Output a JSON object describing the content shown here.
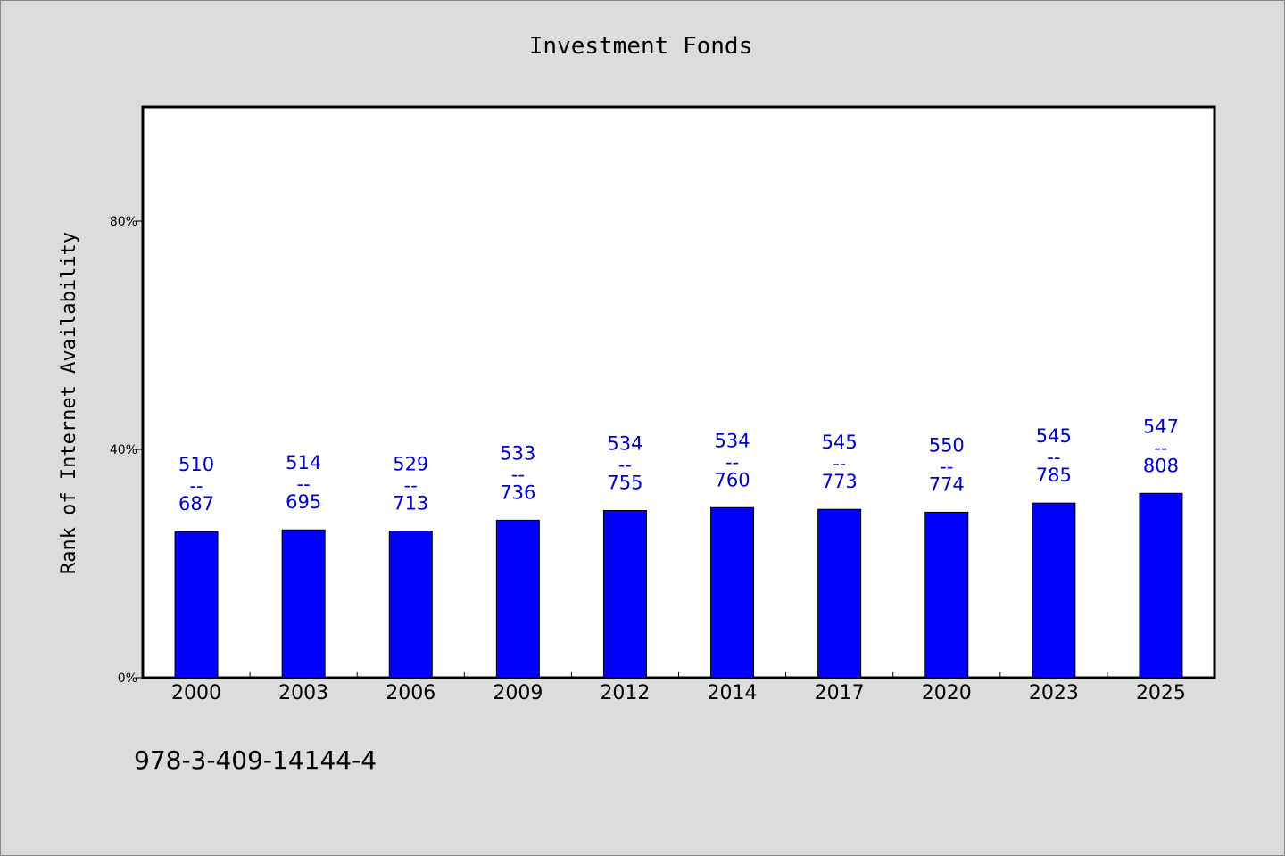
{
  "chart_data": {
    "type": "bar",
    "title": "Investment Fonds",
    "ylabel": "Rank of Internet Availability",
    "xlabel": "",
    "footer": "978-3-409-14144-4",
    "ylim": [
      0,
      100
    ],
    "yticks": [
      0,
      40,
      80
    ],
    "ytick_labels": [
      "0%",
      "40%",
      "80%"
    ],
    "categories": [
      "2000",
      "2003",
      "2006",
      "2009",
      "2012",
      "2014",
      "2017",
      "2020",
      "2023",
      "2025"
    ],
    "values": [
      25.6,
      25.9,
      25.7,
      27.6,
      29.3,
      29.8,
      29.5,
      29.0,
      30.6,
      32.3
    ],
    "annotations": [
      {
        "top": "510",
        "sep": "--",
        "bottom": "687"
      },
      {
        "top": "514",
        "sep": "--",
        "bottom": "695"
      },
      {
        "top": "529",
        "sep": "--",
        "bottom": "713"
      },
      {
        "top": "533",
        "sep": "--",
        "bottom": "736"
      },
      {
        "top": "534",
        "sep": "--",
        "bottom": "755"
      },
      {
        "top": "534",
        "sep": "--",
        "bottom": "760"
      },
      {
        "top": "545",
        "sep": "--",
        "bottom": "773"
      },
      {
        "top": "550",
        "sep": "--",
        "bottom": "774"
      },
      {
        "top": "545",
        "sep": "--",
        "bottom": "785"
      },
      {
        "top": "547",
        "sep": "--",
        "bottom": "808"
      }
    ],
    "bar_color": "#0000ff",
    "label_color": "#0000cc",
    "grid": false,
    "legend": "none"
  }
}
